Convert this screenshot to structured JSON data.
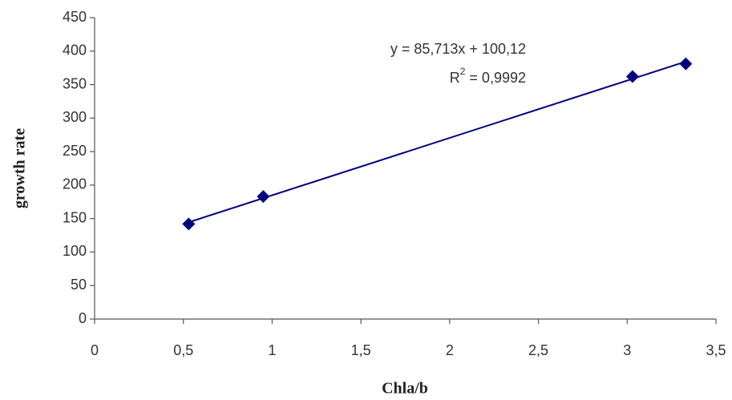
{
  "chart_data": {
    "type": "scatter",
    "x_label": "Chla/b",
    "y_label": "growth rate",
    "equation": "y = 85,713x + 100,12",
    "r_squared": {
      "symbol": "R",
      "exponent": "2",
      "text": " = 0,9992"
    },
    "series": [
      {
        "name": "growth rate",
        "color": "#000080",
        "x": [
          0.53,
          0.95,
          3.03,
          3.33
        ],
        "values": [
          142,
          183,
          362,
          381
        ]
      }
    ],
    "trendline": "linear",
    "xlim": [
      0,
      3.5
    ],
    "xticks": [
      0,
      {
        "value": 0.5,
        "label": "0,5"
      },
      1,
      {
        "value": 1.5,
        "label": "1,5"
      },
      2,
      {
        "value": 2.5,
        "label": "2,5"
      },
      3,
      {
        "value": 3.5,
        "label": "3,5"
      }
    ],
    "ylim": [
      0,
      450
    ],
    "yticks": [
      0,
      50,
      100,
      150,
      200,
      250,
      300,
      350,
      400,
      450
    ],
    "grid": false
  }
}
